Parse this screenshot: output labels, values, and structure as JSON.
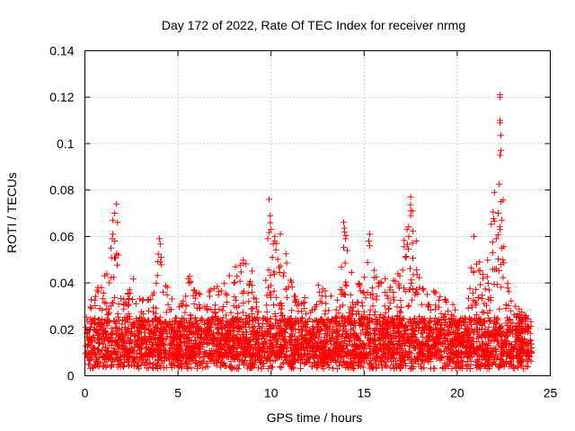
{
  "chart_data": {
    "type": "scatter",
    "title": "Day 172 of 2022, Rate Of TEC Index for receiver nrmg",
    "xlabel": "GPS time / hours",
    "ylabel": "ROTI / TECUs",
    "xlim": [
      0,
      25
    ],
    "ylim": [
      0,
      0.14
    ],
    "xticks": [
      0,
      5,
      10,
      15,
      20,
      25
    ],
    "xtick_labels": [
      "0",
      "5",
      "10",
      "15",
      "20",
      "25"
    ],
    "yticks": [
      0,
      0.02,
      0.04,
      0.06,
      0.08,
      0.1,
      0.12,
      0.14
    ],
    "ytick_labels": [
      "0",
      "0.02",
      "0.04",
      "0.06",
      "0.08",
      "0.1",
      "0.12",
      "0.14"
    ],
    "grid": true,
    "marker": "plus",
    "color": "#ff0000",
    "x_range": [
      0,
      24
    ],
    "baseline_band": [
      0.005,
      0.025
    ],
    "envelope": [
      {
        "x": 0.0,
        "y": 0.026
      },
      {
        "x": 0.3,
        "y": 0.035
      },
      {
        "x": 0.7,
        "y": 0.038
      },
      {
        "x": 1.0,
        "y": 0.042
      },
      {
        "x": 1.3,
        "y": 0.048
      },
      {
        "x": 1.5,
        "y": 0.067
      },
      {
        "x": 1.7,
        "y": 0.074
      },
      {
        "x": 2.0,
        "y": 0.036
      },
      {
        "x": 2.5,
        "y": 0.046
      },
      {
        "x": 3.0,
        "y": 0.035
      },
      {
        "x": 3.5,
        "y": 0.037
      },
      {
        "x": 4.0,
        "y": 0.059
      },
      {
        "x": 4.5,
        "y": 0.038
      },
      {
        "x": 5.0,
        "y": 0.03
      },
      {
        "x": 5.5,
        "y": 0.046
      },
      {
        "x": 6.0,
        "y": 0.036
      },
      {
        "x": 6.5,
        "y": 0.04
      },
      {
        "x": 7.0,
        "y": 0.038
      },
      {
        "x": 7.5,
        "y": 0.041
      },
      {
        "x": 8.0,
        "y": 0.047
      },
      {
        "x": 8.5,
        "y": 0.05
      },
      {
        "x": 9.0,
        "y": 0.045
      },
      {
        "x": 9.5,
        "y": 0.052
      },
      {
        "x": 9.9,
        "y": 0.076
      },
      {
        "x": 10.3,
        "y": 0.058
      },
      {
        "x": 10.6,
        "y": 0.061
      },
      {
        "x": 11.0,
        "y": 0.046
      },
      {
        "x": 11.5,
        "y": 0.037
      },
      {
        "x": 12.0,
        "y": 0.032
      },
      {
        "x": 12.5,
        "y": 0.043
      },
      {
        "x": 13.0,
        "y": 0.035
      },
      {
        "x": 13.5,
        "y": 0.038
      },
      {
        "x": 13.9,
        "y": 0.066
      },
      {
        "x": 14.5,
        "y": 0.04
      },
      {
        "x": 15.0,
        "y": 0.044
      },
      {
        "x": 15.3,
        "y": 0.061
      },
      {
        "x": 15.7,
        "y": 0.041
      },
      {
        "x": 16.2,
        "y": 0.045
      },
      {
        "x": 16.7,
        "y": 0.043
      },
      {
        "x": 17.2,
        "y": 0.061
      },
      {
        "x": 17.5,
        "y": 0.077
      },
      {
        "x": 18.0,
        "y": 0.041
      },
      {
        "x": 18.5,
        "y": 0.038
      },
      {
        "x": 19.0,
        "y": 0.036
      },
      {
        "x": 19.5,
        "y": 0.035
      },
      {
        "x": 20.0,
        "y": 0.027
      },
      {
        "x": 20.5,
        "y": 0.026
      },
      {
        "x": 20.9,
        "y": 0.06
      },
      {
        "x": 21.5,
        "y": 0.04
      },
      {
        "x": 22.0,
        "y": 0.079
      },
      {
        "x": 22.3,
        "y": 0.121
      },
      {
        "x": 22.6,
        "y": 0.045
      },
      {
        "x": 23.0,
        "y": 0.033
      },
      {
        "x": 23.5,
        "y": 0.028
      },
      {
        "x": 24.0,
        "y": 0.025
      }
    ],
    "outliers": [
      {
        "x": 22.3,
        "y": 0.121
      },
      {
        "x": 22.3,
        "y": 0.12
      },
      {
        "x": 22.3,
        "y": 0.11
      },
      {
        "x": 22.3,
        "y": 0.109
      },
      {
        "x": 22.35,
        "y": 0.097
      },
      {
        "x": 22.3,
        "y": 0.095
      },
      {
        "x": 22.0,
        "y": 0.079
      },
      {
        "x": 22.35,
        "y": 0.075
      },
      {
        "x": 22.2,
        "y": 0.07
      },
      {
        "x": 22.4,
        "y": 0.067
      },
      {
        "x": 22.3,
        "y": 0.063
      },
      {
        "x": 22.1,
        "y": 0.059
      },
      {
        "x": 22.4,
        "y": 0.055
      },
      {
        "x": 22.45,
        "y": 0.05
      },
      {
        "x": 22.1,
        "y": 0.046
      },
      {
        "x": 20.9,
        "y": 0.06
      },
      {
        "x": 17.5,
        "y": 0.077
      },
      {
        "x": 17.6,
        "y": 0.071
      },
      {
        "x": 17.5,
        "y": 0.069
      },
      {
        "x": 17.3,
        "y": 0.063
      },
      {
        "x": 17.4,
        "y": 0.06
      },
      {
        "x": 17.8,
        "y": 0.058
      },
      {
        "x": 9.9,
        "y": 0.076
      },
      {
        "x": 9.95,
        "y": 0.069
      },
      {
        "x": 10.0,
        "y": 0.063
      },
      {
        "x": 10.2,
        "y": 0.06
      },
      {
        "x": 10.5,
        "y": 0.061
      },
      {
        "x": 10.3,
        "y": 0.057
      },
      {
        "x": 13.9,
        "y": 0.066
      },
      {
        "x": 13.95,
        "y": 0.062
      },
      {
        "x": 14.0,
        "y": 0.059
      },
      {
        "x": 15.3,
        "y": 0.061
      },
      {
        "x": 15.25,
        "y": 0.058
      },
      {
        "x": 15.3,
        "y": 0.056
      },
      {
        "x": 1.7,
        "y": 0.074
      },
      {
        "x": 1.6,
        "y": 0.07
      },
      {
        "x": 1.5,
        "y": 0.067
      },
      {
        "x": 1.75,
        "y": 0.066
      },
      {
        "x": 1.5,
        "y": 0.061
      },
      {
        "x": 1.6,
        "y": 0.058
      },
      {
        "x": 1.4,
        "y": 0.055
      },
      {
        "x": 4.0,
        "y": 0.059
      },
      {
        "x": 4.1,
        "y": 0.051
      },
      {
        "x": 4.05,
        "y": 0.049
      }
    ]
  }
}
